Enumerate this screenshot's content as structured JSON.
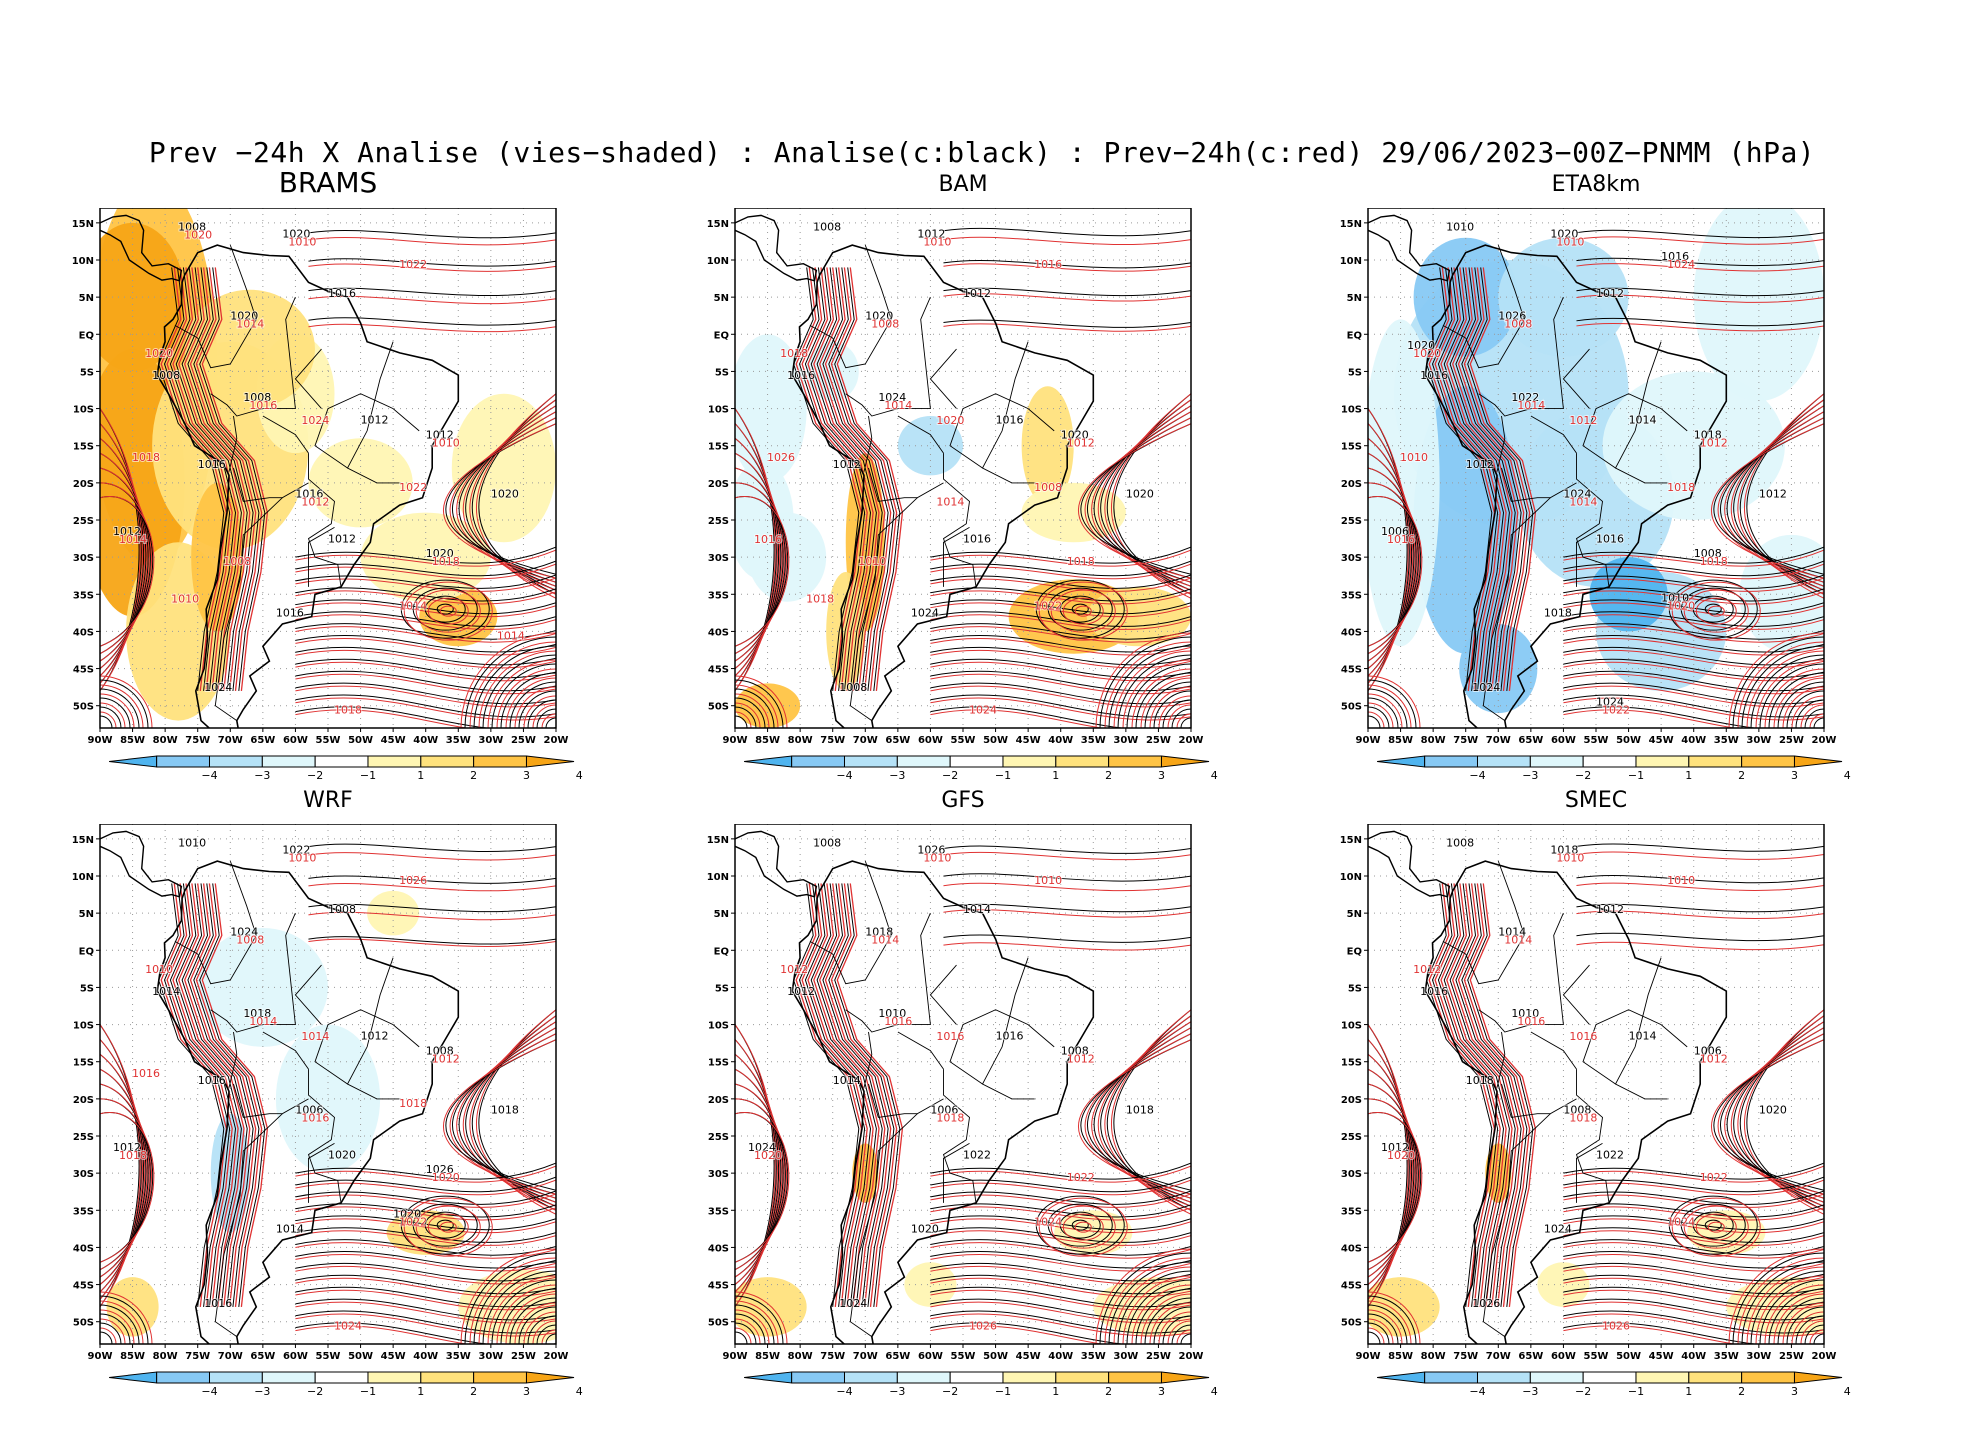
{
  "title": "Prev −24h X Analise (vies−shaded) : Analise(c:black) : Prev−24h(c:red) 29/06/2023−00Z−PNMM (hPa)",
  "lat_labels": [
    "15N",
    "10N",
    "5N",
    "EQ",
    "5S",
    "10S",
    "15S",
    "20S",
    "25S",
    "30S",
    "35S",
    "40S",
    "45S",
    "50S"
  ],
  "lon_labels": [
    "90W",
    "85W",
    "80W",
    "75W",
    "70W",
    "65W",
    "60W",
    "55W",
    "50W",
    "45W",
    "40W",
    "35W",
    "30W",
    "25W",
    "20W"
  ],
  "colorbar": {
    "labels": [
      "−4",
      "−3",
      "−2",
      "−1",
      "1",
      "2",
      "3",
      "4"
    ],
    "colors": [
      "#4fb4ef",
      "#87c9f4",
      "#b5e2f7",
      "#dff7fb",
      "#ffffff",
      "#fff6b3",
      "#ffe27d",
      "#ffc445",
      "#f7a516"
    ]
  },
  "colors": {
    "analysis_contour": "#000000",
    "forecast_contour": "#e03232"
  },
  "panels": [
    {
      "name": "BRAMS",
      "bias": "warm-strong",
      "black_labels": [
        "1008",
        "1016",
        "1008",
        "1012",
        "1016",
        "1020",
        "1012",
        "1016",
        "1024",
        "1020",
        "1020",
        "1008",
        "1012",
        "1016",
        "1012",
        "1020"
      ],
      "red_labels": [
        "1010",
        "1014",
        "1016",
        "1010",
        "1012",
        "1014",
        "1018",
        "1014",
        "1018",
        "1022",
        "1020",
        "1024",
        "1018",
        "1022",
        "1008",
        "1010",
        "1014",
        "1020"
      ]
    },
    {
      "name": "BAM",
      "bias": "mixed",
      "black_labels": [
        "1008",
        "1012",
        "1016",
        "1016",
        "1012",
        "1020",
        "1016",
        "1024",
        "1008",
        "1012",
        "1020",
        "1024",
        "1020"
      ],
      "red_labels": [
        "1010",
        "1008",
        "1014",
        "1012",
        "1014",
        "1016",
        "1018",
        "1022",
        "1024",
        "1016",
        "1018",
        "1020",
        "1026",
        "1008",
        "1010",
        "1018"
      ]
    },
    {
      "name": "ETA8km",
      "bias": "cold",
      "black_labels": [
        "1010",
        "1012",
        "1016",
        "1014",
        "1012",
        "1012",
        "1016",
        "1018",
        "1024",
        "1020",
        "1026",
        "1022",
        "1018",
        "1024",
        "1006",
        "1008",
        "1010",
        "1024",
        "1016",
        "1020"
      ],
      "red_labels": [
        "1010",
        "1008",
        "1014",
        "1012",
        "1014",
        "1016",
        "1018",
        "1020",
        "1022",
        "1024",
        "1020",
        "1012",
        "1010",
        "1018"
      ]
    },
    {
      "name": "WRF",
      "bias": "mixed-weak",
      "black_labels": [
        "1010",
        "1008",
        "1014",
        "1012",
        "1016",
        "1018",
        "1020",
        "1014",
        "1016",
        "1022",
        "1024",
        "1018",
        "1008",
        "1006",
        "1012",
        "1026",
        "1020"
      ],
      "red_labels": [
        "1010",
        "1008",
        "1014",
        "1012",
        "1016",
        "1018",
        "1020",
        "1022",
        "1024",
        "1026",
        "1010",
        "1014",
        "1016",
        "1018"
      ]
    },
    {
      "name": "GFS",
      "bias": "weak",
      "black_labels": [
        "1008",
        "1014",
        "1012",
        "1016",
        "1014",
        "1018",
        "1022",
        "1020",
        "1024",
        "1026",
        "1018",
        "1010",
        "1008",
        "1006",
        "1024"
      ],
      "red_labels": [
        "1010",
        "1014",
        "1016",
        "1012",
        "1018",
        "1020",
        "1022",
        "1024",
        "1026",
        "1010",
        "1012",
        "1016"
      ]
    },
    {
      "name": "SMEC",
      "bias": "weak",
      "black_labels": [
        "1008",
        "1012",
        "1016",
        "1014",
        "1018",
        "1020",
        "1022",
        "1024",
        "1026",
        "1018",
        "1014",
        "1010",
        "1006",
        "1008",
        "1012"
      ],
      "red_labels": [
        "1010",
        "1014",
        "1016",
        "1012",
        "1018",
        "1020",
        "1022",
        "1024",
        "1026",
        "1010",
        "1012",
        "1016"
      ]
    }
  ]
}
